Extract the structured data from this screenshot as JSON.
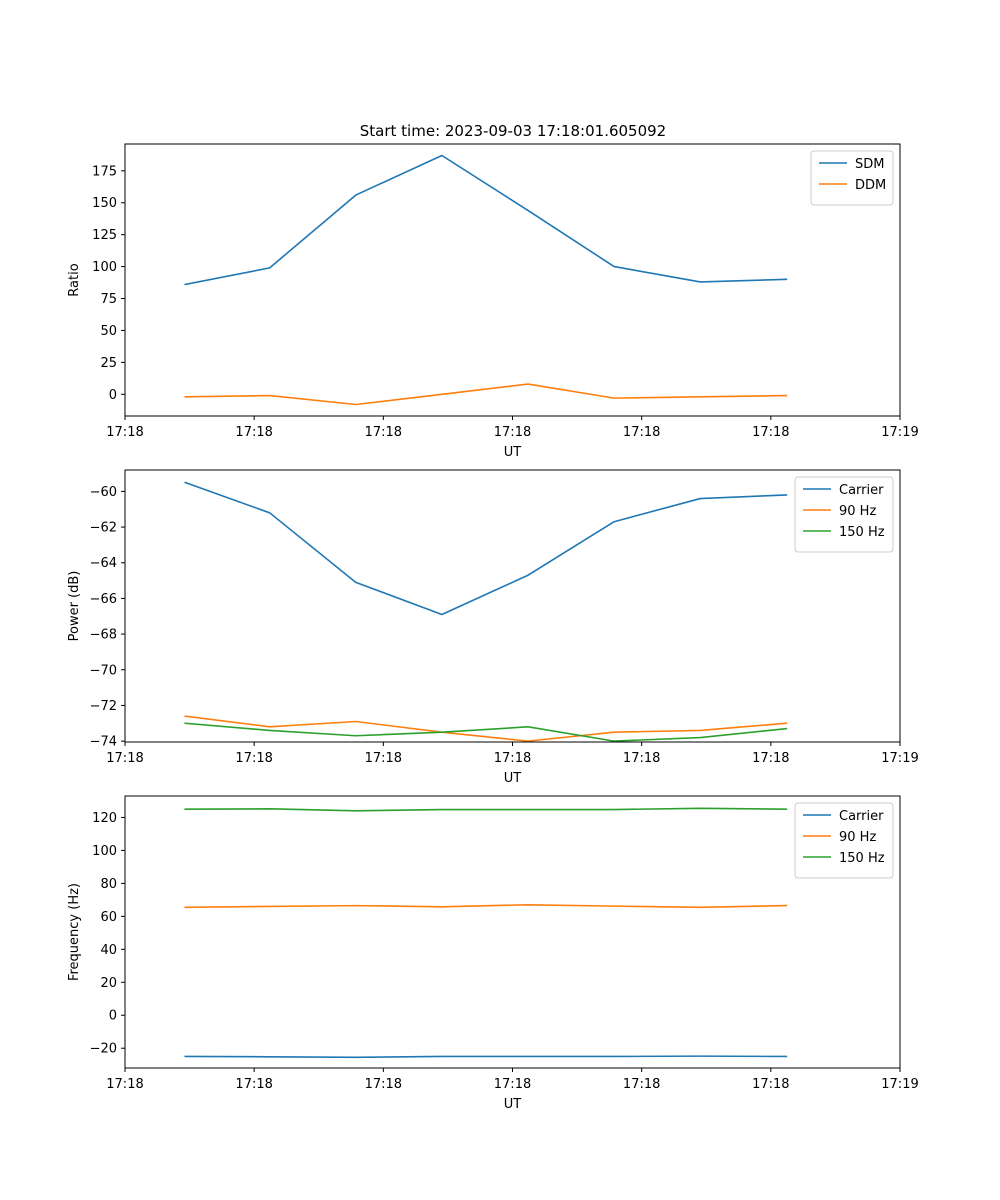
{
  "figure_title": "Start time: 2023-09-03 17:18:01.605092",
  "chart_data": [
    {
      "type": "line",
      "xlabel": "UT",
      "ylabel": "Ratio",
      "xlim": [
        0,
        9
      ],
      "ylim": [
        -17,
        196
      ],
      "x": [
        0.7,
        1.68,
        2.68,
        3.68,
        4.68,
        5.68,
        6.68,
        7.68
      ],
      "xticks": [
        0.0,
        1.5,
        3.0,
        4.5,
        6.0,
        7.5,
        9.0
      ],
      "xtick_labels": [
        "17:18",
        "17:18",
        "17:18",
        "17:18",
        "17:18",
        "17:18",
        "17:19"
      ],
      "yticks": [
        0,
        25,
        50,
        75,
        100,
        125,
        150,
        175
      ],
      "ytick_labels": [
        "0",
        "25",
        "50",
        "75",
        "100",
        "125",
        "150",
        "175"
      ],
      "legend_position": "top-right",
      "series": [
        {
          "name": "SDM",
          "color": "#1f77b4",
          "values": [
            86,
            99,
            156,
            187,
            144,
            100,
            88,
            90
          ]
        },
        {
          "name": "DDM",
          "color": "#ff7f0e",
          "values": [
            -2,
            -1,
            -8,
            0,
            8,
            -3,
            -2,
            -1
          ]
        }
      ]
    },
    {
      "type": "line",
      "xlabel": "UT",
      "ylabel": "Power (dB)",
      "xlim": [
        0,
        9
      ],
      "ylim": [
        -74.05,
        -58.8
      ],
      "x": [
        0.7,
        1.68,
        2.68,
        3.68,
        4.68,
        5.68,
        6.68,
        7.68
      ],
      "xticks": [
        0.0,
        1.5,
        3.0,
        4.5,
        6.0,
        7.5,
        9.0
      ],
      "xtick_labels": [
        "17:18",
        "17:18",
        "17:18",
        "17:18",
        "17:18",
        "17:18",
        "17:19"
      ],
      "yticks": [
        -74,
        -72,
        -70,
        -68,
        -66,
        -64,
        -62,
        -60
      ],
      "ytick_labels": [
        "−74",
        "−72",
        "−70",
        "−68",
        "−66",
        "−64",
        "−62",
        "−60"
      ],
      "legend_position": "top-right",
      "series": [
        {
          "name": "Carrier",
          "color": "#1f77b4",
          "values": [
            -59.5,
            -61.2,
            -65.1,
            -66.9,
            -64.7,
            -61.7,
            -60.4,
            -60.2
          ]
        },
        {
          "name": "90 Hz",
          "color": "#ff7f0e",
          "values": [
            -72.6,
            -73.2,
            -72.9,
            -73.5,
            -74.0,
            -73.5,
            -73.4,
            -73.0
          ]
        },
        {
          "name": "150 Hz",
          "color": "#2ca02c",
          "values": [
            -73.0,
            -73.4,
            -73.7,
            -73.5,
            -73.2,
            -74.0,
            -73.8,
            -73.3
          ]
        }
      ]
    },
    {
      "type": "line",
      "xlabel": "UT",
      "ylabel": "Frequency (Hz)",
      "xlim": [
        0,
        9
      ],
      "ylim": [
        -32,
        133
      ],
      "x": [
        0.7,
        1.68,
        2.68,
        3.68,
        4.68,
        5.68,
        6.68,
        7.68
      ],
      "xticks": [
        0.0,
        1.5,
        3.0,
        4.5,
        6.0,
        7.5,
        9.0
      ],
      "xtick_labels": [
        "17:18",
        "17:18",
        "17:18",
        "17:18",
        "17:18",
        "17:18",
        "17:19"
      ],
      "yticks": [
        -20,
        0,
        20,
        40,
        60,
        80,
        100,
        120
      ],
      "ytick_labels": [
        "−20",
        "0",
        "20",
        "40",
        "60",
        "80",
        "100",
        "120"
      ],
      "legend_position": "top-right",
      "series": [
        {
          "name": "Carrier",
          "color": "#1f77b4",
          "values": [
            -25,
            -25.2,
            -25.5,
            -25,
            -25,
            -25,
            -24.8,
            -25
          ]
        },
        {
          "name": "90 Hz",
          "color": "#ff7f0e",
          "values": [
            65.5,
            66,
            66.5,
            65.8,
            67,
            66.2,
            65.5,
            66.5
          ]
        },
        {
          "name": "150 Hz",
          "color": "#2ca02c",
          "values": [
            125,
            125.2,
            124,
            124.8,
            124.8,
            124.8,
            125.5,
            125
          ]
        }
      ]
    }
  ]
}
